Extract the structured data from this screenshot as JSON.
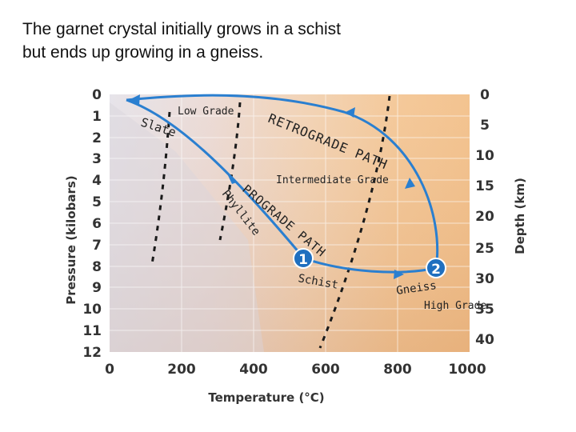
{
  "title": {
    "line1": "The garnet crystal initially grows in a schist",
    "line2": "but ends up growing in a gneiss."
  },
  "axes": {
    "x_label": "Temperature (°C)",
    "y_left_label": "Pressure (kilobars)",
    "y_right_label": "Depth (km)",
    "x_ticks": [
      "0",
      "200",
      "400",
      "600",
      "800",
      "1000"
    ],
    "y_left_ticks": [
      "0",
      "1",
      "2",
      "3",
      "4",
      "5",
      "6",
      "7",
      "8",
      "9",
      "10",
      "11",
      "12"
    ],
    "y_right_ticks": [
      "0",
      "5",
      "10",
      "15",
      "20",
      "25",
      "30",
      "35",
      "40"
    ]
  },
  "labels": {
    "slate": "Slate",
    "low_grade": "Low Grade",
    "retrograde_path": "RETROGRADE PATH",
    "intermediate_grade": "Intermediate Grade",
    "phyllite": "Phyllite",
    "prograde_path": "PROGRADE PATH",
    "schist": "Schist",
    "gneiss": "Gneiss",
    "high_grade": "High Grade"
  },
  "markers": {
    "point1": "1",
    "point2": "2"
  },
  "colors": {
    "path": "#2a7fd0",
    "marker": "#1f6fbf",
    "boundary": "#1a1a1a"
  }
}
